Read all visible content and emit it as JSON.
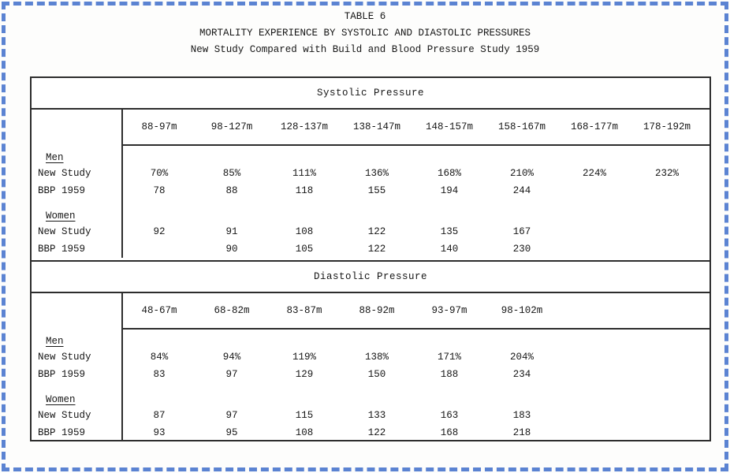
{
  "frame": {
    "border_color": "#5b83d2"
  },
  "heading": {
    "table_label": "TABLE 6",
    "title": "MORTALITY EXPERIENCE BY SYSTOLIC AND DIASTOLIC PRESSURES",
    "subtitle": "New Study Compared with Build and Blood Pressure Study 1959"
  },
  "systolic": {
    "section_title": "Systolic Pressure",
    "columns": [
      "88-97m",
      "98-127m",
      "128-137m",
      "138-147m",
      "148-157m",
      "158-167m",
      "168-177m",
      "178-192m"
    ],
    "groups": [
      {
        "label": "Men",
        "rows": [
          {
            "label": "New Study",
            "values": [
              "70%",
              "85%",
              "111%",
              "136%",
              "168%",
              "210%",
              "224%",
              "232%"
            ]
          },
          {
            "label": "BBP 1959",
            "values": [
              "78",
              "88",
              "118",
              "155",
              "194",
              "244",
              "",
              ""
            ]
          }
        ]
      },
      {
        "label": "Women",
        "rows": [
          {
            "label": "New Study",
            "values": [
              "92",
              "91",
              "108",
              "122",
              "135",
              "167",
              "",
              ""
            ]
          },
          {
            "label": "BBP 1959",
            "values": [
              "",
              "90",
              "105",
              "122",
              "140",
              "230",
              "",
              ""
            ]
          }
        ]
      }
    ]
  },
  "diastolic": {
    "section_title": "Diastolic Pressure",
    "columns": [
      "48-67m",
      "68-82m",
      "83-87m",
      "88-92m",
      "93-97m",
      "98-102m"
    ],
    "groups": [
      {
        "label": "Men",
        "rows": [
          {
            "label": "New Study",
            "values": [
              "84%",
              "94%",
              "119%",
              "138%",
              "171%",
              "204%"
            ]
          },
          {
            "label": "BBP 1959",
            "values": [
              "83",
              "97",
              "129",
              "150",
              "188",
              "234"
            ]
          }
        ]
      },
      {
        "label": "Women",
        "rows": [
          {
            "label": "New Study",
            "values": [
              "87",
              "97",
              "115",
              "133",
              "163",
              "183"
            ]
          },
          {
            "label": "BBP 1959",
            "values": [
              "93",
              "95",
              "108",
              "122",
              "168",
              "218"
            ]
          }
        ]
      }
    ]
  }
}
